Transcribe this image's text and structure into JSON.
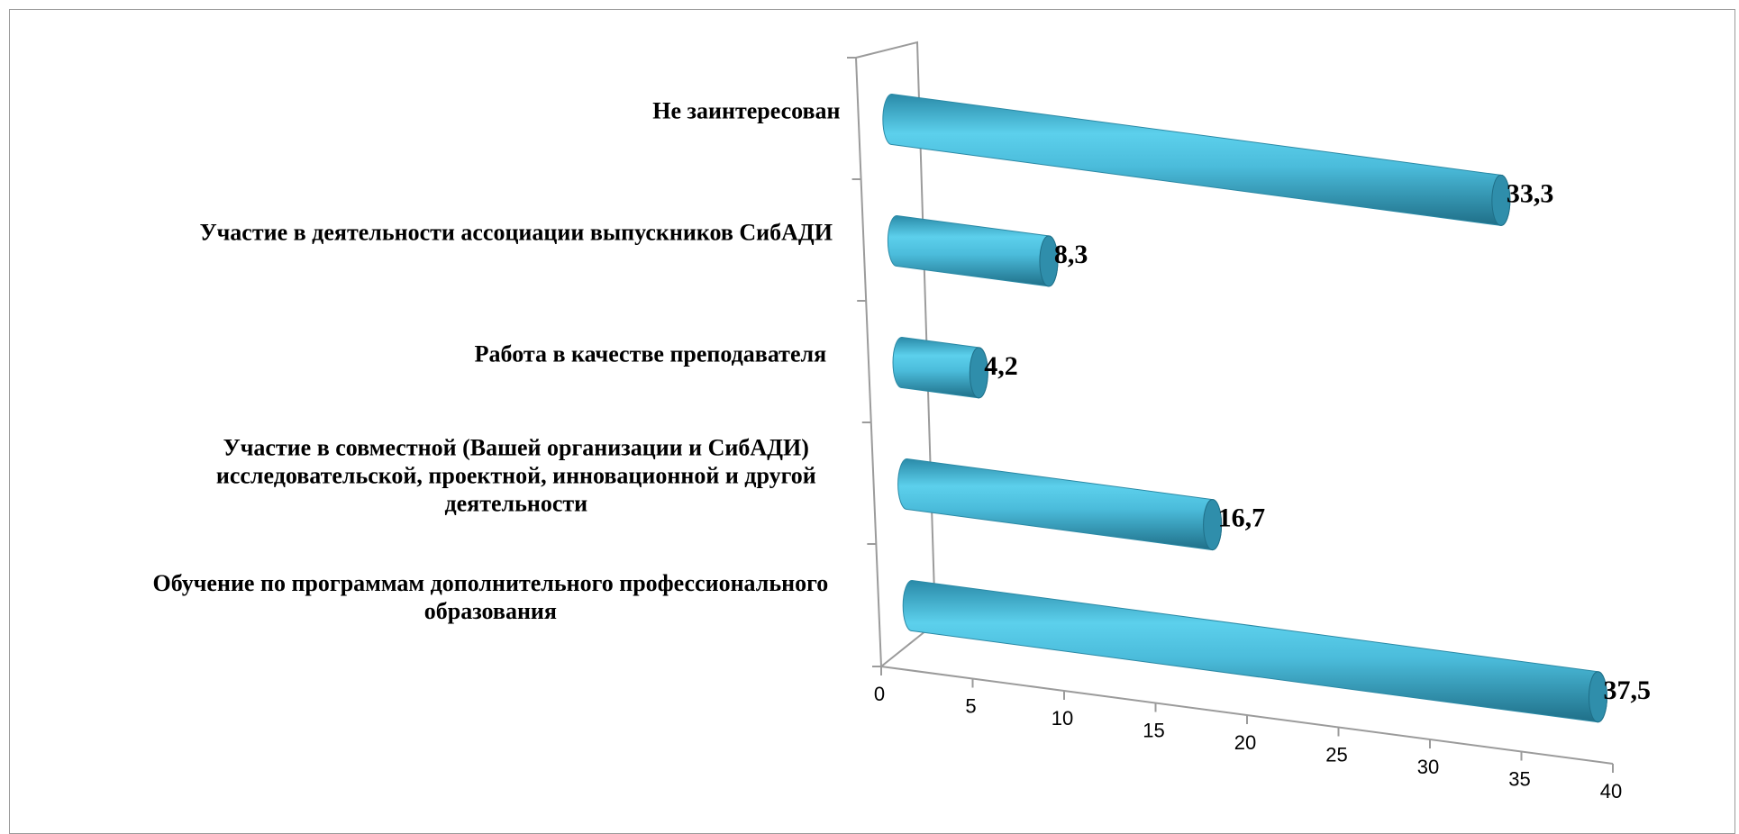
{
  "chart_data": {
    "type": "bar",
    "orientation": "horizontal",
    "style": "3d-cylinder",
    "categories": [
      "Обучение по программам дополнительного профессионального образования",
      "Участие в совместной (Вашей организации и СибАДИ) исследовательской, проектной, инновационной и другой деятельности",
      "Работа в качестве преподавателя",
      "Участие в деятельности ассоциации выпускников СибАДИ",
      "Не заинтересован"
    ],
    "category_lines": [
      [
        "Обучение по программам дополнительного профессионального",
        "образования"
      ],
      [
        "Участие в совместной (Вашей организации и СибАДИ)",
        "исследовательской, проектной, инновационной и другой",
        "деятельности"
      ],
      [
        "Работа в качестве преподавателя"
      ],
      [
        "Участие в деятельности ассоциации выпускников СибАДИ"
      ],
      [
        "Не заинтересован"
      ]
    ],
    "values": [
      37.5,
      16.7,
      4.2,
      8.3,
      33.3
    ],
    "value_labels": [
      "37,5",
      "16,7",
      "4,2",
      "8,3",
      "33,3"
    ],
    "xlim": [
      0,
      40
    ],
    "xticks": [
      "0",
      "5",
      "10",
      "15",
      "20",
      "25",
      "30",
      "35",
      "40"
    ],
    "bar_color": "#4bbcdb",
    "grid": false,
    "legend": "none"
  }
}
